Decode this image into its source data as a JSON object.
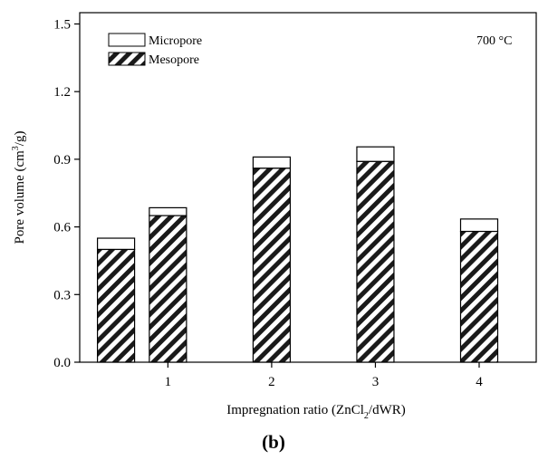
{
  "chart_data": {
    "type": "bar",
    "stacked": true,
    "x": [
      0.5,
      1,
      2,
      3,
      4
    ],
    "x_ticks": [
      "1",
      "2",
      "3",
      "4"
    ],
    "series": [
      {
        "name": "Mesopore",
        "values": [
          0.5,
          0.65,
          0.86,
          0.89,
          0.58
        ],
        "pattern": "diagonal-hatch"
      },
      {
        "name": "Micropore",
        "values": [
          0.05,
          0.035,
          0.05,
          0.065,
          0.055
        ],
        "pattern": "none"
      }
    ],
    "y_ticks": [
      "0.0",
      "0.3",
      "0.6",
      "0.9",
      "1.2",
      "1.5"
    ],
    "ylim": [
      0,
      1.55
    ],
    "xlim": [
      0.15,
      4.55
    ],
    "ylabel_pre": "Pore volume (cm",
    "ylabel_sup": "3",
    "ylabel_post": "/g)",
    "xlabel_pre": "Impregnation ratio (ZnCl",
    "xlabel_sub": "2",
    "xlabel_post": "/dWR)",
    "annotation": "700 °C",
    "legend_position": "top-left",
    "panel_label": "(b)"
  }
}
